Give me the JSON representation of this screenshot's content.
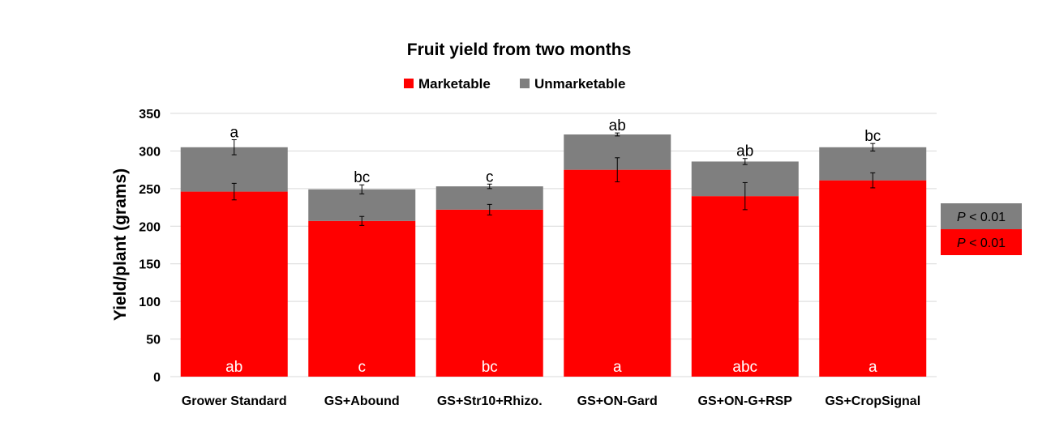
{
  "chart_data": {
    "type": "bar",
    "stacked": true,
    "title": "Fruit yield from two months",
    "xlabel": "",
    "ylabel": "Yield/plant (grams)",
    "ylim": [
      0,
      350
    ],
    "yticks": [
      "0",
      "50",
      "100",
      "150",
      "200",
      "250",
      "300",
      "350"
    ],
    "grid": true,
    "legend_position": "top",
    "categories": [
      "Grower Standard",
      "GS+Abound",
      "GS+Str10+Rhizo.",
      "GS+ON-Gard",
      "GS+ON-G+RSP",
      "GS+CropSignal"
    ],
    "series": [
      {
        "name": "Marketable",
        "color": "#ff0000",
        "values": [
          246,
          207,
          222,
          275,
          240,
          261
        ],
        "error": [
          11,
          6,
          7,
          16,
          18,
          10
        ],
        "letters": [
          "ab",
          "c",
          "bc",
          "a",
          "abc",
          "a"
        ]
      },
      {
        "name": "Unmarketable",
        "color": "#7f7f7f",
        "values": [
          59,
          42,
          31,
          47,
          46,
          44
        ],
        "error": [
          10,
          6,
          3,
          2,
          4,
          5
        ],
        "letters": [
          "a",
          "bc",
          "c",
          "ab",
          "ab",
          "bc"
        ]
      }
    ],
    "significance_boxes": [
      {
        "italic": "P",
        "text": " < 0.01",
        "series": "Unmarketable"
      },
      {
        "italic": "P",
        "text": " < 0.01",
        "series": "Marketable"
      }
    ]
  }
}
